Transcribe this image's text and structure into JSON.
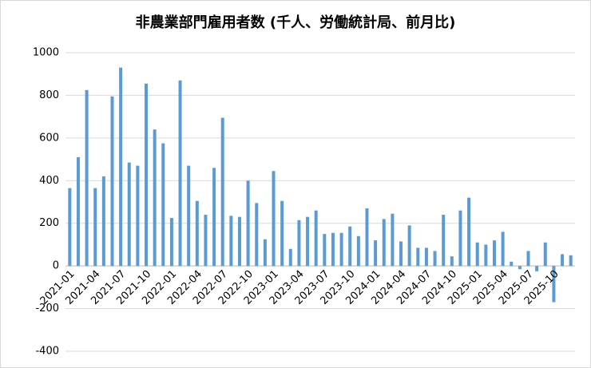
{
  "chart_data": {
    "type": "bar",
    "title": "非農業部門雇用者数 (千人、労働統計局、前月比)",
    "categories": [
      "2021-01",
      null,
      null,
      "2021-04",
      null,
      null,
      "2021-07",
      null,
      null,
      "2021-10",
      null,
      null,
      "2022-01",
      null,
      null,
      "2022-04",
      null,
      null,
      "2022-07",
      null,
      null,
      "2022-10",
      null,
      null,
      "2023-01",
      null,
      null,
      "2023-04",
      null,
      null,
      "2023-07",
      null,
      null,
      "2023-10",
      null,
      null,
      "2024-01",
      null,
      null,
      "2024-04",
      null,
      null,
      "2024-07",
      null,
      null,
      "2024-10",
      null,
      null,
      "2025-01",
      null,
      null,
      "2025-04",
      null,
      null,
      "2025-07",
      null,
      null,
      "2025-10",
      null,
      null
    ],
    "values": [
      365,
      510,
      825,
      365,
      420,
      795,
      930,
      485,
      470,
      855,
      640,
      575,
      225,
      870,
      470,
      305,
      240,
      460,
      695,
      235,
      230,
      400,
      295,
      125,
      445,
      305,
      80,
      215,
      230,
      260,
      150,
      155,
      155,
      185,
      140,
      270,
      120,
      220,
      245,
      115,
      190,
      85,
      85,
      70,
      240,
      45,
      260,
      320,
      110,
      100,
      120,
      160,
      20,
      -15,
      70,
      -25,
      110,
      -170,
      55,
      50
    ],
    "color": "#5b9bd5",
    "ylim": [
      -400,
      1000
    ],
    "yticks": [
      -400,
      -200,
      0,
      200,
      400,
      600,
      800,
      1000
    ],
    "grid": true
  }
}
